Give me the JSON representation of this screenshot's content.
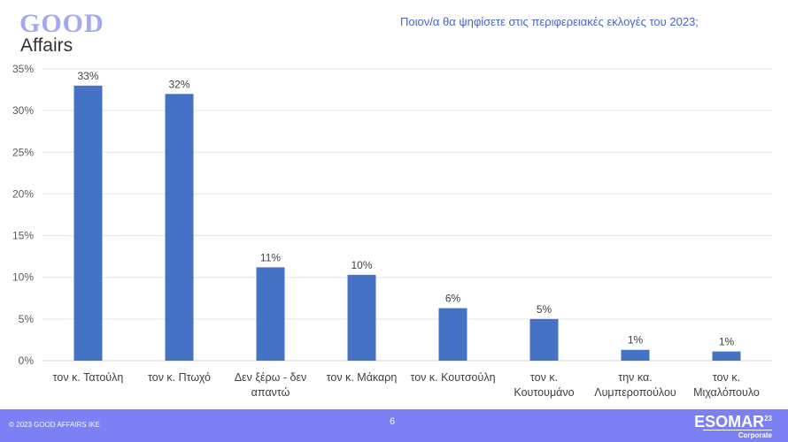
{
  "logo": {
    "line1": "GOOD",
    "line2": "Affairs"
  },
  "footer": {
    "copyright": "© 2023 GOOD AFFAIRS IKE",
    "page": "6",
    "esomar": "ESOMAR",
    "esomar_sup": "23",
    "corporate": "Corporate"
  },
  "chart_data": {
    "type": "bar",
    "title": "Ποιον/α  θα ψηφίσετε στις περιφερειακές εκλογές του 2023;",
    "categories": [
      [
        "τον κ. Τατούλη"
      ],
      [
        "τον κ. Πτωχό"
      ],
      [
        "Δεν ξέρω - δεν",
        "απαντώ"
      ],
      [
        "τον κ. Μάκαρη"
      ],
      [
        "τον κ. Κουτσούλη"
      ],
      [
        "τον κ.",
        "Κουτουμάνο"
      ],
      [
        "την κα.",
        "Λυμπεροπούλου"
      ],
      [
        "τον κ.",
        "Μιχαλόπουλο"
      ]
    ],
    "values": [
      33,
      32,
      11.2,
      10.3,
      6.3,
      5,
      1.3,
      1.1
    ],
    "data_labels": [
      "33%",
      "32%",
      "11%",
      "10%",
      "6%",
      "5%",
      "1%",
      "1%"
    ],
    "yticks": [
      "0%",
      "5%",
      "10%",
      "15%",
      "20%",
      "25%",
      "30%",
      "35%"
    ],
    "ylim": [
      0,
      35
    ],
    "grid": true,
    "color": "#4472c4"
  }
}
